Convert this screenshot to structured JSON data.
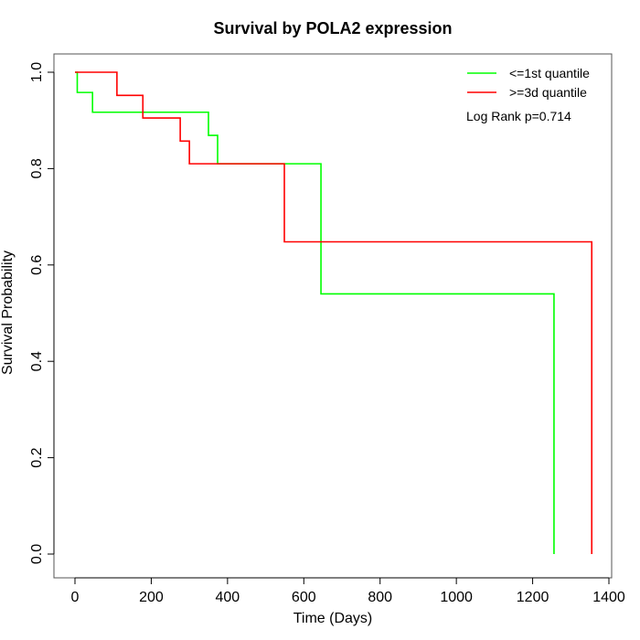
{
  "chart_data": {
    "type": "line",
    "subtype": "kaplan-meier-step",
    "title": "Survival by POLA2 expression",
    "xlabel": "Time (Days)",
    "ylabel": "Survival Probability",
    "xlim": [
      0,
      1400
    ],
    "ylim": [
      0,
      1.0
    ],
    "xticks": [
      0,
      200,
      400,
      600,
      800,
      1000,
      1200,
      1400
    ],
    "yticks": [
      0.0,
      0.2,
      0.4,
      0.6,
      0.8,
      1.0
    ],
    "ytick_labels": [
      "0.0",
      "0.2",
      "0.4",
      "0.6",
      "0.8",
      "1.0"
    ],
    "grid": false,
    "legend_position": "top-right",
    "annotation": "Log Rank p=0.714",
    "series": [
      {
        "name": "<=1st quantile",
        "color": "#00ff00",
        "x": [
          0,
          6,
          46,
          350,
          374,
          645,
          1256
        ],
        "y": [
          1.0,
          0.958,
          0.917,
          0.869,
          0.81,
          0.54,
          0.0
        ]
      },
      {
        "name": ">=3d quantile",
        "color": "#ff0000",
        "x": [
          0,
          110,
          178,
          276,
          300,
          549,
          1355
        ],
        "y": [
          1.0,
          0.952,
          0.905,
          0.857,
          0.81,
          0.648,
          0.0
        ]
      }
    ]
  }
}
